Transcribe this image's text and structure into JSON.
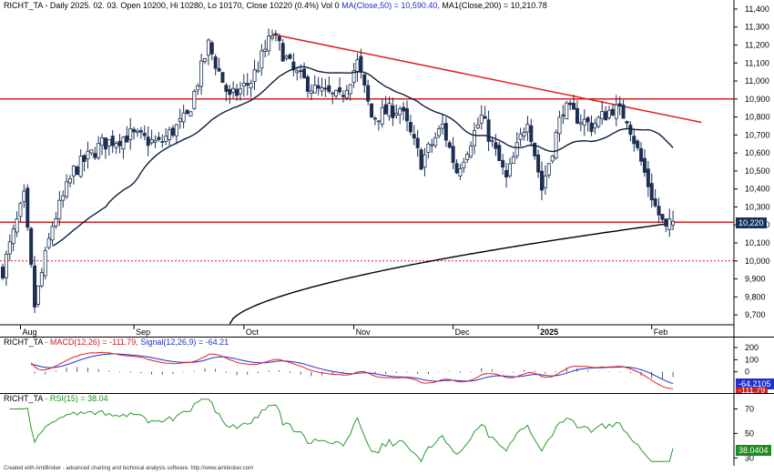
{
  "price_header": {
    "symbol": "RICHT_TA",
    "text": " - Daily 2025. 02. 03. Open 10200, Hi 10280, Lo 10170, Close 10220 (0.4%) Vol 0 ",
    "ma50": "MA(Close,50) = 10,590.40,",
    "ma200": " MA1(Close,200) = 10,210.78"
  },
  "macd_header": {
    "symbol": "RICHT_TA",
    "macd": " - MACD(12,26) = -111.79,",
    "signal": " Signal(12,26,9) = -64.21"
  },
  "rsi_header": {
    "symbol": "RICHT_TA",
    "rsi": " - RSI(15) = 38.04"
  },
  "footer": "Created with AmiBroker - advanced charting and technical analysis software. http://www.amibroker.com",
  "last_price_label": "10,220",
  "macd_signal_label": "-64.2105",
  "macd_value_label": "-111.79",
  "rsi_label": "38.0404",
  "colors": {
    "up_candle": "#ffffff",
    "down_candle": "#1c2f52",
    "ma50": "#0a1e3c",
    "ma200": "#000000",
    "trendline": "#e02020",
    "hline": "#d02020",
    "macd": "#e02020",
    "signal": "#2030c8",
    "rsi": "#2a9a2a"
  },
  "chart_data": [
    {
      "type": "candlestick",
      "title": "RICHT_TA - Daily",
      "y_ticks": [
        9700,
        9800,
        9900,
        10000,
        10100,
        10200,
        10300,
        10400,
        10500,
        10600,
        10700,
        10800,
        10900,
        11000,
        11100,
        11200,
        11300,
        11400
      ],
      "y_tick_labels": [
        "9,700",
        "9,800",
        "9,900",
        "10,000",
        "10,100",
        "10,200",
        "10,300",
        "10,400",
        "10,500",
        "10,600",
        "10,700",
        "10,800",
        "10,900",
        "11,000",
        "11,100",
        "11,200",
        "11,300",
        "11,400"
      ],
      "ylim": [
        9650,
        11430
      ],
      "x_labels": [
        "Aug",
        "Sep",
        "Oct",
        "Nov",
        "Dec",
        "2025",
        "Feb"
      ],
      "x_label_bar_index": [
        5,
        37,
        68,
        99,
        127,
        151,
        183
      ],
      "last_bar": {
        "open": 10200,
        "high": 10280,
        "low": 10170,
        "close": 10220
      },
      "ma50_last": 10590.4,
      "ma200_last": 10210.78,
      "horizontal_lines": [
        10900,
        10220,
        10000
      ],
      "trendline": {
        "from_bar": 76,
        "from_value": 11260,
        "to_bar": 197,
        "to_value": 10770
      }
    },
    {
      "type": "line",
      "title": "MACD(12,26) / Signal(12,26,9)",
      "y_ticks": [
        200,
        100,
        0
      ],
      "ylim": [
        -160,
        260
      ],
      "macd_last": -111.79,
      "signal_last": -64.21
    },
    {
      "type": "line",
      "title": "RSI(15)",
      "y_ticks": [
        70,
        50,
        30
      ],
      "ylim": [
        25,
        80
      ],
      "rsi_last": 38.04
    }
  ]
}
